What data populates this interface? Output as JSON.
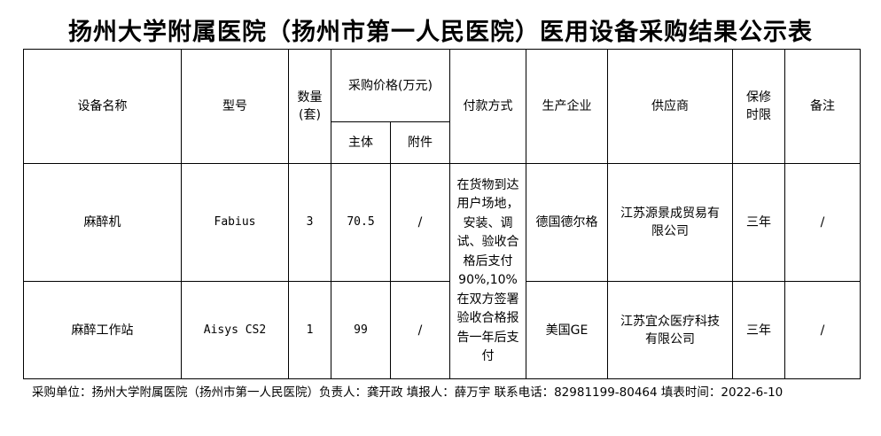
{
  "title": "扬州大学附属医院（扬州市第一人民医院）医用设备采购结果公示表",
  "headers": {
    "name": "设备名称",
    "model": "型号",
    "qty": "数量(套)",
    "price": "采购价格(万元)",
    "price_main": "主体",
    "price_accessory": "附件",
    "payment": "付款方式",
    "manufacturer": "生产企业",
    "supplier": "供应商",
    "warranty": "保修时限",
    "remark": "备注"
  },
  "rows": [
    {
      "name": "麻醉机",
      "model": "Fabius",
      "qty": "3",
      "main": "70.5",
      "accessory": "/",
      "manufacturer": "德国德尔格",
      "supplier": "江苏源景成贸易有限公司",
      "warranty": "三年",
      "remark": "/"
    },
    {
      "name": "麻醉工作站",
      "model": "Aisys CS2",
      "qty": "1",
      "main": "99",
      "accessory": "/",
      "manufacturer": "美国GE",
      "supplier": "江苏宜众医疗科技有限公司",
      "warranty": "三年",
      "remark": "/"
    }
  ],
  "payment": "在货物到达用户场地，安装、调试、验收合格后支付 90%,10%在双方签署验收合格报告一年后支付",
  "footer": "采购单位：扬州大学附属医院（扬州市第一人民医院）负责人：龚开政  填报人：薛万宇  联系电话：82981199-80464  填表时间：2022-6-10"
}
